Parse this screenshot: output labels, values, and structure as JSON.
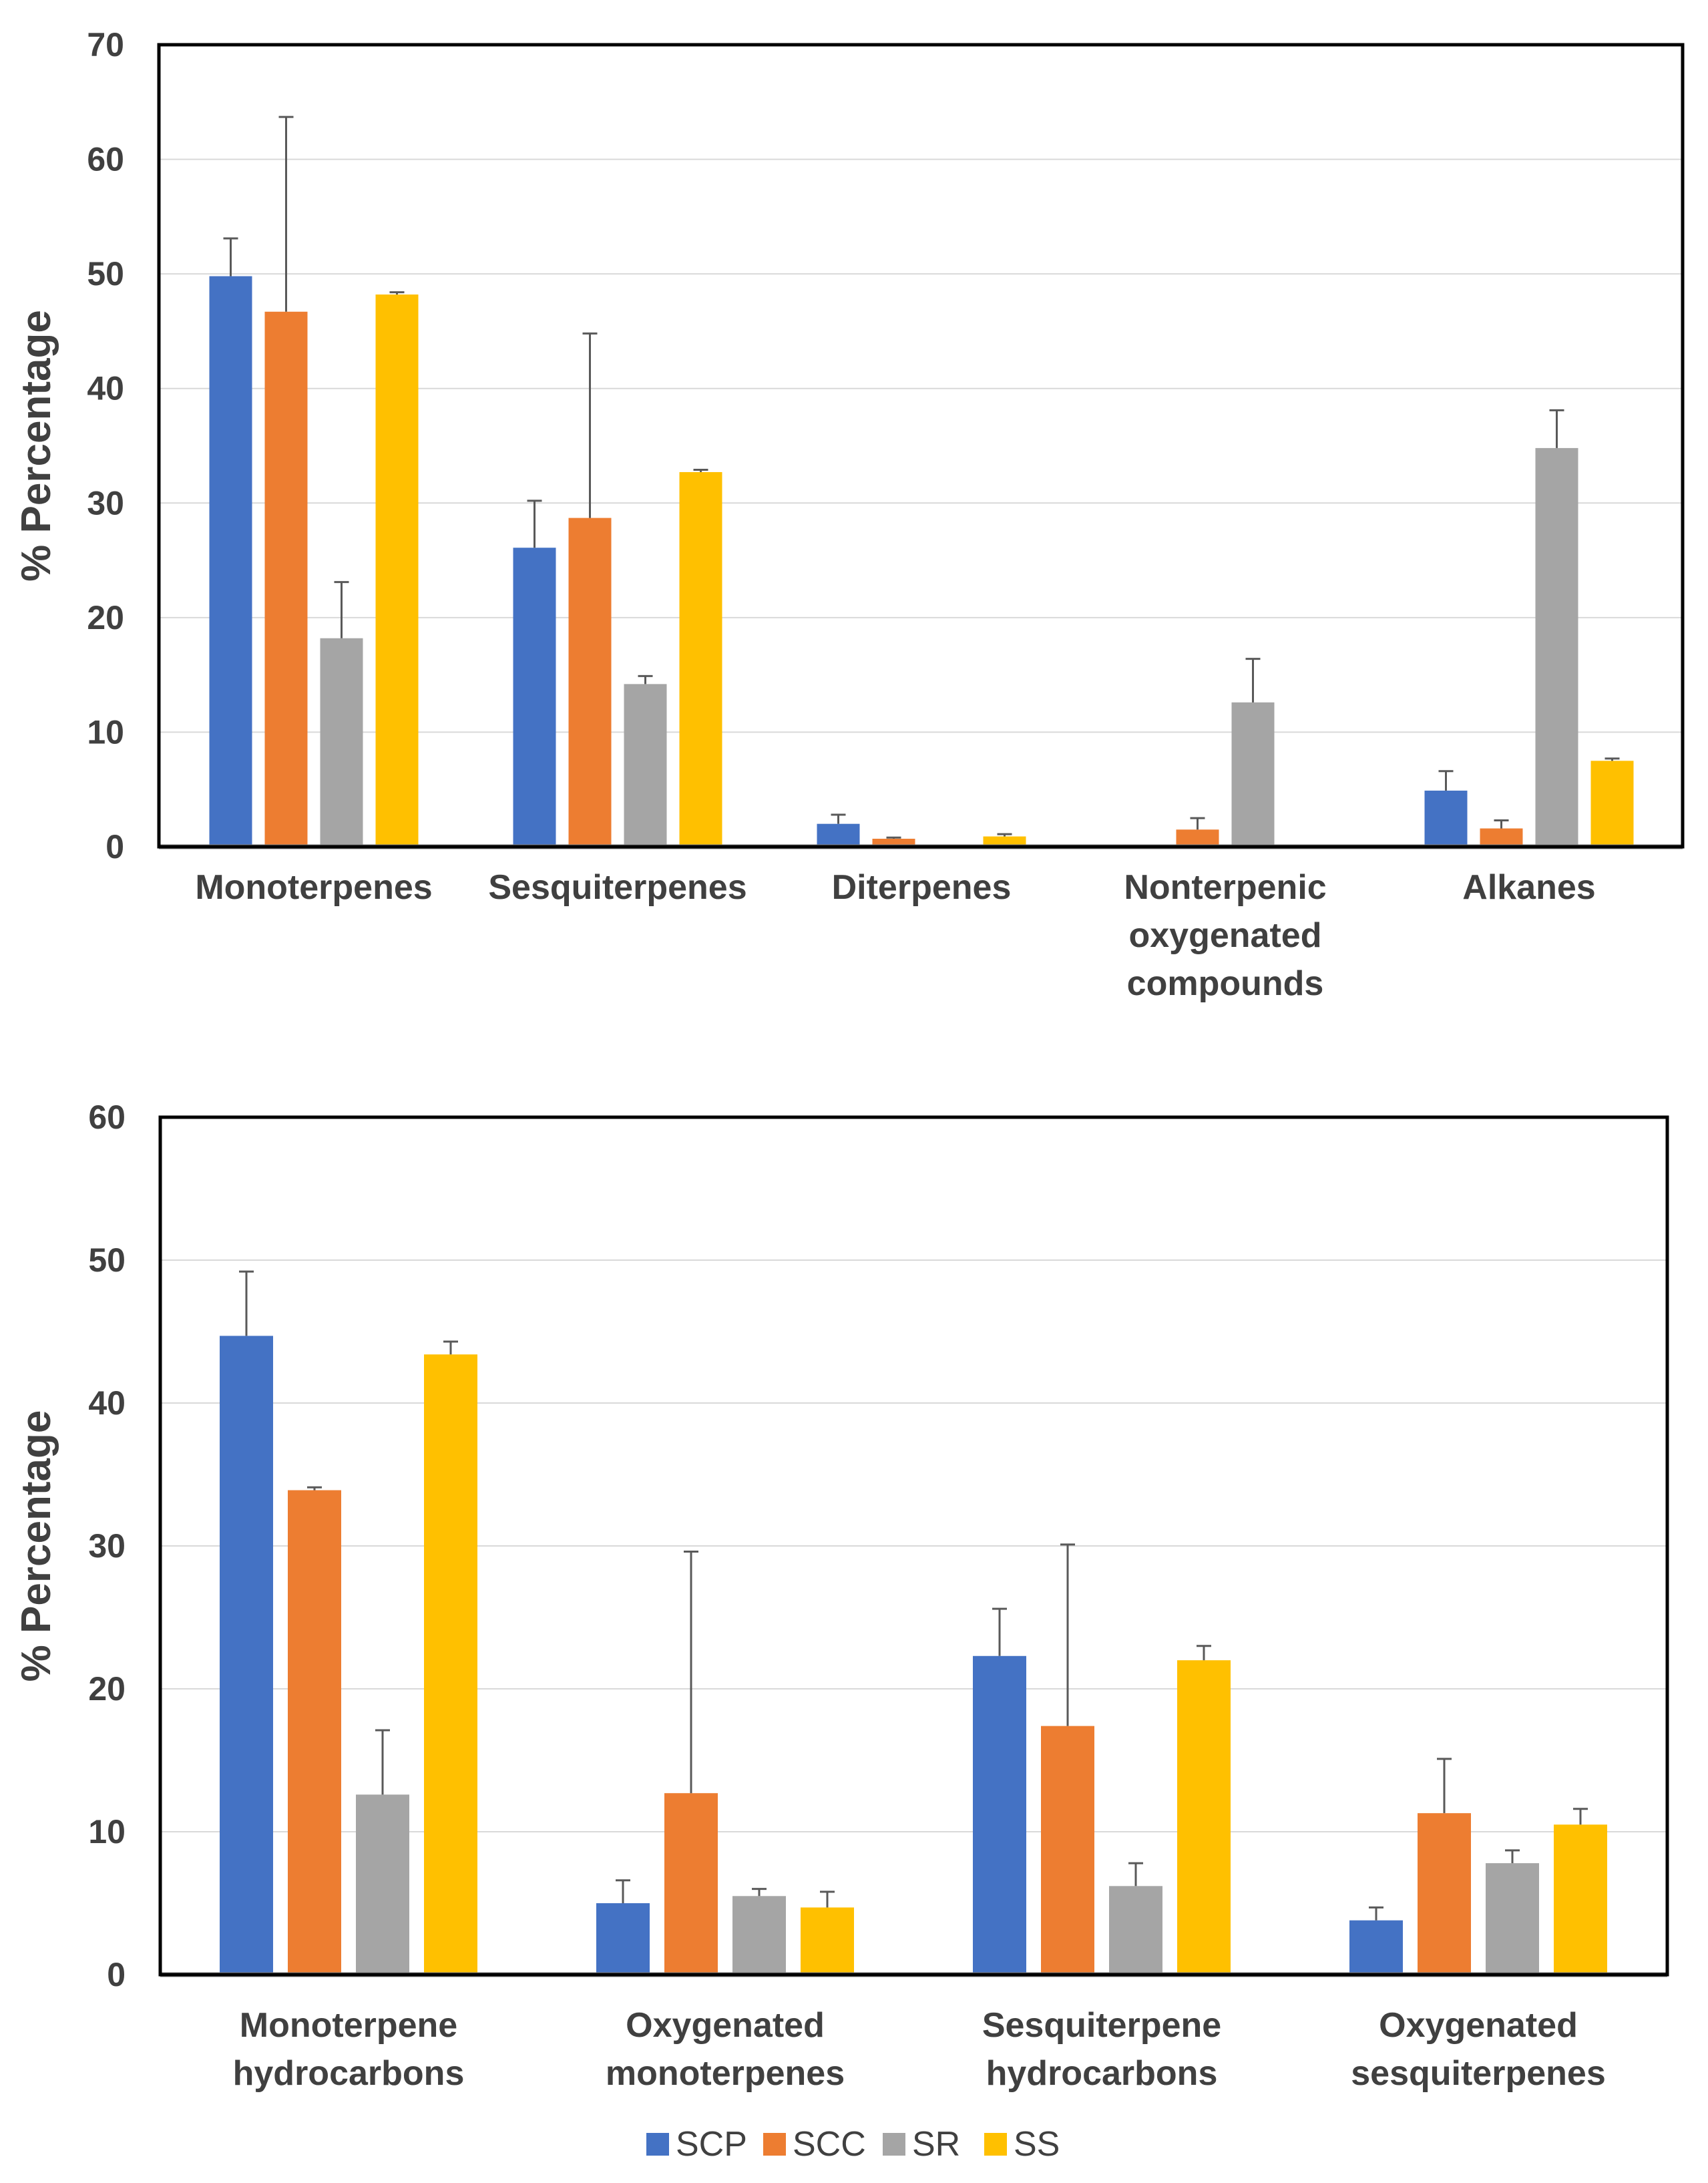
{
  "chart_data": [
    {
      "type": "bar",
      "title": "",
      "xlabel": "",
      "ylabel": "% Percentage",
      "ylim": [
        0,
        70
      ],
      "yticks": [
        0,
        10,
        20,
        30,
        40,
        50,
        60,
        70
      ],
      "grid": true,
      "categories": [
        [
          "Monoterpenes"
        ],
        [
          "Sesquiterpenes"
        ],
        [
          "Diterpenes"
        ],
        [
          "Nonterpenic",
          "oxygenated",
          "compounds"
        ],
        [
          "Alkanes"
        ]
      ],
      "series": [
        {
          "name": "SCP",
          "values": [
            49.8,
            26.1,
            2.0,
            0.0,
            4.9
          ],
          "errors": [
            3.3,
            4.1,
            0.8,
            0.0,
            1.7
          ]
        },
        {
          "name": "SCC",
          "values": [
            46.7,
            28.7,
            0.7,
            1.5,
            1.6
          ],
          "errors": [
            17.0,
            16.1,
            0.1,
            1.0,
            0.7
          ]
        },
        {
          "name": "SR",
          "values": [
            18.2,
            14.2,
            0.0,
            12.6,
            34.8
          ],
          "errors": [
            4.9,
            0.7,
            0.0,
            3.8,
            3.3
          ]
        },
        {
          "name": "SS",
          "values": [
            48.2,
            32.7,
            0.9,
            0.0,
            7.5
          ],
          "errors": [
            0.2,
            0.2,
            0.2,
            0.0,
            0.2
          ]
        }
      ]
    },
    {
      "type": "bar",
      "title": "",
      "xlabel": "",
      "ylabel": "% Percentage",
      "ylim": [
        0,
        60
      ],
      "yticks": [
        0,
        10,
        20,
        30,
        40,
        50,
        60
      ],
      "grid": true,
      "categories": [
        [
          "Monoterpene",
          "hydrocarbons"
        ],
        [
          "Oxygenated",
          "monoterpenes"
        ],
        [
          "Sesquiterpene",
          "hydrocarbons"
        ],
        [
          "Oxygenated",
          "sesquiterpenes"
        ]
      ],
      "series": [
        {
          "name": "SCP",
          "values": [
            44.7,
            5.0,
            22.3,
            3.8
          ],
          "errors": [
            4.5,
            1.6,
            3.3,
            0.9
          ]
        },
        {
          "name": "SCC",
          "values": [
            33.9,
            12.7,
            17.4,
            11.3
          ],
          "errors": [
            0.2,
            16.9,
            12.7,
            3.8
          ]
        },
        {
          "name": "SR",
          "values": [
            12.6,
            5.5,
            6.2,
            7.8
          ],
          "errors": [
            4.5,
            0.5,
            1.6,
            0.9
          ]
        },
        {
          "name": "SS",
          "values": [
            43.4,
            4.7,
            22.0,
            10.5
          ],
          "errors": [
            0.9,
            1.1,
            1.0,
            1.1
          ]
        }
      ]
    }
  ],
  "legend": {
    "placement": "bottom-center",
    "items": [
      {
        "label": "SCP",
        "color": "#4472C4"
      },
      {
        "label": "SCC",
        "color": "#ED7D31"
      },
      {
        "label": "SR",
        "color": "#A5A5A5"
      },
      {
        "label": "SS",
        "color": "#FFC000"
      }
    ]
  }
}
